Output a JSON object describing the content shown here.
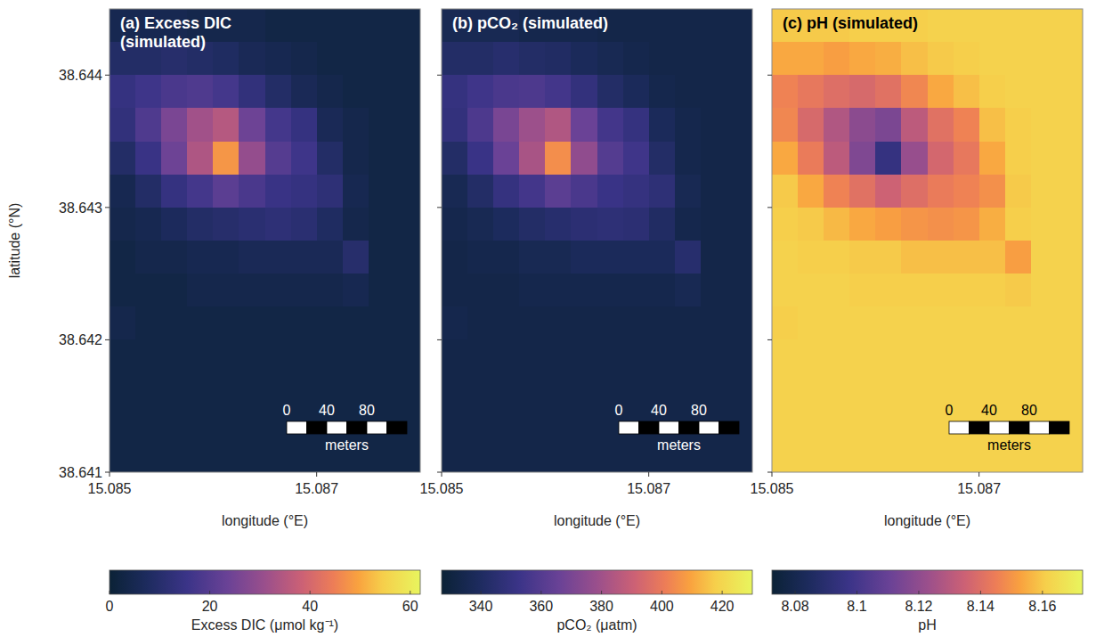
{
  "chart_data": [
    {
      "type": "heatmap",
      "title": "(a) Excess DIC (simulated)",
      "xlabel": "longitude (°E)",
      "ylabel": "latitude (°N)",
      "xlim": [
        15.085,
        15.088
      ],
      "ylim": [
        38.641,
        38.6445
      ],
      "xticks": [
        15.085,
        15.087
      ],
      "yticks": [
        38.641,
        38.642,
        38.643,
        38.644
      ],
      "x": [
        15.085125,
        15.085375,
        15.085625,
        15.085875,
        15.086125,
        15.086375,
        15.086625,
        15.086875,
        15.087125,
        15.087375,
        15.087625,
        15.087875
      ],
      "y": [
        38.644375,
        38.644125,
        38.643875,
        38.643625,
        38.643375,
        38.643125,
        38.642875,
        38.642625,
        38.642375,
        38.642125,
        38.641875,
        38.641625,
        38.641375,
        38.641125
      ],
      "cells": [
        [
          5,
          5,
          5,
          4,
          4,
          4,
          3,
          3,
          3,
          3,
          3,
          3
        ],
        [
          9,
          9,
          10,
          9,
          8,
          6,
          5,
          4,
          3,
          3,
          3,
          3
        ],
        [
          14,
          16,
          18,
          19,
          17,
          13,
          9,
          6,
          4,
          3,
          3,
          3
        ],
        [
          13,
          19,
          26,
          32,
          35,
          24,
          17,
          14,
          6,
          4,
          3,
          3
        ],
        [
          9,
          15,
          24,
          34,
          48,
          30,
          20,
          16,
          9,
          4,
          3,
          3
        ],
        [
          5,
          9,
          14,
          17,
          21,
          18,
          15,
          14,
          12,
          5,
          3,
          3
        ],
        [
          4,
          5,
          7,
          9,
          10,
          11,
          12,
          11,
          8,
          4,
          3,
          3
        ],
        [
          3,
          4,
          4,
          5,
          5,
          6,
          6,
          6,
          6,
          10,
          3,
          3
        ],
        [
          3,
          3,
          3,
          4,
          4,
          4,
          4,
          4,
          4,
          5,
          3,
          3
        ],
        [
          4,
          3,
          3,
          3,
          3,
          3,
          3,
          3,
          3,
          3,
          3,
          3
        ],
        [
          3,
          3,
          3,
          3,
          3,
          3,
          3,
          3,
          3,
          3,
          3,
          3
        ],
        [
          3,
          3,
          3,
          3,
          3,
          3,
          3,
          3,
          3,
          3,
          3,
          3
        ],
        [
          3,
          3,
          3,
          3,
          3,
          3,
          3,
          3,
          3,
          3,
          3,
          3
        ],
        [
          3,
          3,
          3,
          3,
          3,
          3,
          3,
          3,
          3,
          3,
          3,
          3
        ]
      ],
      "colorbar": {
        "range": [
          0,
          62
        ],
        "ticks": [
          0,
          20,
          40,
          60
        ],
        "label": "Excess DIC (μmol kg⁻¹)"
      },
      "scale_bar": {
        "ticks": [
          0,
          40,
          80
        ],
        "max": 120,
        "label": "meters"
      }
    },
    {
      "type": "heatmap",
      "title": "(b) pCO₂ (simulated)",
      "xlabel": "longitude (°E)",
      "tick_labels": "x",
      "xlim": [
        15.085,
        15.088
      ],
      "ylim": [
        38.641,
        38.6445
      ],
      "xticks": [
        15.085,
        15.087
      ],
      "yticks": [
        38.641,
        38.642,
        38.643,
        38.644
      ],
      "x": [
        15.085125,
        15.085375,
        15.085625,
        15.085875,
        15.086125,
        15.086375,
        15.086625,
        15.086875,
        15.087125,
        15.087375,
        15.087625,
        15.087875
      ],
      "y": [
        38.644375,
        38.644125,
        38.643875,
        38.643625,
        38.643375,
        38.643125,
        38.642875,
        38.642625,
        38.642375,
        38.642125,
        38.641875,
        38.641625,
        38.641375,
        38.641125
      ],
      "cells": [
        [
          336,
          336,
          336,
          334,
          334,
          334,
          333,
          333,
          333,
          333,
          333,
          333
        ],
        [
          342,
          342,
          344,
          342,
          341,
          338,
          336,
          334,
          333,
          333,
          333,
          333
        ],
        [
          350,
          354,
          357,
          358,
          355,
          349,
          342,
          338,
          334,
          333,
          333,
          333
        ],
        [
          349,
          358,
          370,
          379,
          384,
          366,
          355,
          350,
          338,
          334,
          333,
          333
        ],
        [
          342,
          352,
          366,
          382,
          405,
          376,
          360,
          354,
          342,
          334,
          333,
          333
        ],
        [
          336,
          342,
          350,
          355,
          362,
          357,
          352,
          350,
          347,
          336,
          333,
          333
        ],
        [
          334,
          336,
          339,
          342,
          344,
          346,
          347,
          346,
          341,
          334,
          333,
          333
        ],
        [
          333,
          334,
          334,
          336,
          336,
          338,
          338,
          338,
          338,
          344,
          333,
          333
        ],
        [
          333,
          333,
          333,
          334,
          334,
          334,
          334,
          334,
          334,
          336,
          333,
          333
        ],
        [
          334,
          333,
          333,
          333,
          333,
          333,
          333,
          333,
          333,
          333,
          333,
          333
        ],
        [
          333,
          333,
          333,
          333,
          333,
          333,
          333,
          333,
          333,
          333,
          333,
          333
        ],
        [
          333,
          333,
          333,
          333,
          333,
          333,
          333,
          333,
          333,
          333,
          333,
          333
        ],
        [
          333,
          333,
          333,
          333,
          333,
          333,
          333,
          333,
          333,
          333,
          333,
          333
        ],
        [
          333,
          333,
          333,
          333,
          333,
          333,
          333,
          333,
          333,
          333,
          333,
          333
        ]
      ],
      "colorbar": {
        "range": [
          327,
          430
        ],
        "ticks": [
          340,
          360,
          380,
          400,
          420
        ],
        "label": "pCO₂ (μatm)"
      },
      "scale_bar": {
        "ticks": [
          0,
          40,
          80
        ],
        "max": 120,
        "label": "meters"
      }
    },
    {
      "type": "heatmap",
      "title": "(c) pH (simulated)",
      "xlabel": "longitude (°E)",
      "tick_labels": "x",
      "xlim": [
        15.085,
        15.088
      ],
      "ylim": [
        38.641,
        38.6445
      ],
      "xticks": [
        15.085,
        15.087
      ],
      "yticks": [
        38.641,
        38.642,
        38.643,
        38.644
      ],
      "x": [
        15.085125,
        15.085375,
        15.085625,
        15.085875,
        15.086125,
        15.086375,
        15.086625,
        15.086875,
        15.087125,
        15.087375,
        15.087625,
        15.087875
      ],
      "y": [
        38.644375,
        38.644125,
        38.643875,
        38.643625,
        38.643375,
        38.643125,
        38.642875,
        38.642625,
        38.642375,
        38.642125,
        38.641875,
        38.641625,
        38.641375,
        38.641125
      ],
      "cells": [
        [
          8.16,
          8.16,
          8.16,
          8.161,
          8.161,
          8.161,
          8.162,
          8.162,
          8.162,
          8.162,
          8.162,
          8.162
        ],
        [
          8.154,
          8.154,
          8.152,
          8.154,
          8.155,
          8.158,
          8.16,
          8.161,
          8.162,
          8.162,
          8.162,
          8.162
        ],
        [
          8.146,
          8.143,
          8.14,
          8.138,
          8.141,
          8.147,
          8.154,
          8.158,
          8.161,
          8.162,
          8.162,
          8.162
        ],
        [
          8.147,
          8.138,
          8.128,
          8.119,
          8.115,
          8.131,
          8.141,
          8.146,
          8.158,
          8.161,
          8.162,
          8.162
        ],
        [
          8.154,
          8.144,
          8.131,
          8.116,
          8.095,
          8.122,
          8.137,
          8.143,
          8.154,
          8.161,
          8.162,
          8.162
        ],
        [
          8.16,
          8.154,
          8.146,
          8.141,
          8.135,
          8.14,
          8.144,
          8.146,
          8.149,
          8.16,
          8.162,
          8.162
        ],
        [
          8.161,
          8.16,
          8.157,
          8.154,
          8.152,
          8.15,
          8.149,
          8.15,
          8.155,
          8.161,
          8.162,
          8.162
        ],
        [
          8.162,
          8.161,
          8.161,
          8.16,
          8.16,
          8.158,
          8.158,
          8.158,
          8.158,
          8.152,
          8.162,
          8.162
        ],
        [
          8.162,
          8.162,
          8.162,
          8.161,
          8.161,
          8.161,
          8.161,
          8.161,
          8.161,
          8.16,
          8.162,
          8.162
        ],
        [
          8.161,
          8.162,
          8.162,
          8.162,
          8.162,
          8.162,
          8.162,
          8.162,
          8.162,
          8.162,
          8.162,
          8.162
        ],
        [
          8.162,
          8.162,
          8.162,
          8.162,
          8.162,
          8.162,
          8.162,
          8.162,
          8.162,
          8.162,
          8.162,
          8.162
        ],
        [
          8.162,
          8.162,
          8.162,
          8.162,
          8.162,
          8.162,
          8.162,
          8.162,
          8.162,
          8.162,
          8.162,
          8.162
        ],
        [
          8.162,
          8.162,
          8.162,
          8.162,
          8.162,
          8.162,
          8.162,
          8.162,
          8.162,
          8.162,
          8.162,
          8.162
        ],
        [
          8.162,
          8.162,
          8.162,
          8.162,
          8.162,
          8.162,
          8.162,
          8.162,
          8.162,
          8.162,
          8.162,
          8.162
        ]
      ],
      "colorbar": {
        "range": [
          8.0725,
          8.173
        ],
        "ticks": [
          8.08,
          8.1,
          8.12,
          8.14,
          8.16
        ],
        "label": "pH"
      },
      "scale_bar": {
        "ticks": [
          0,
          40,
          80
        ],
        "max": 120,
        "label": "meters"
      }
    }
  ]
}
